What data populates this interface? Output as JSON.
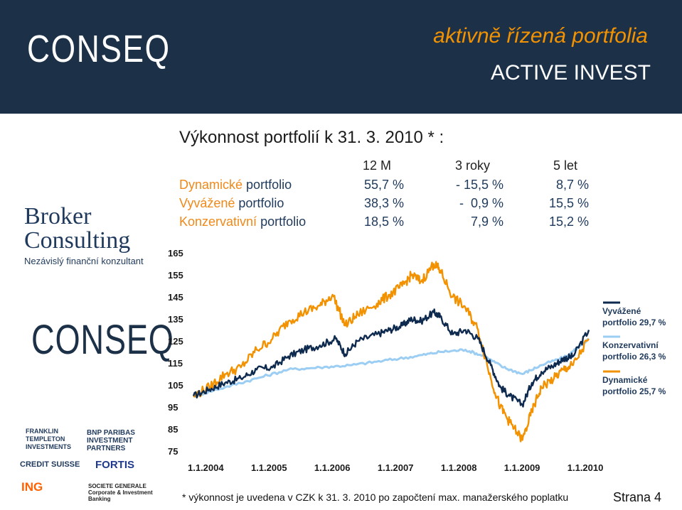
{
  "header": {
    "logo": "CONSEQ",
    "tagline_cz": "aktivně řízená portfolia",
    "tagline_en": "ACTIVE INVEST"
  },
  "title": "Výkonnost portfolií k  31. 3. 2010 * :",
  "table": {
    "columns": [
      "12 M",
      "3 roky",
      "5 let"
    ],
    "rows": [
      {
        "label_a": "Dynamické",
        "label_b": "portfolio",
        "values": [
          "55,7 %",
          "- 15,5 %",
          "8,7 %"
        ]
      },
      {
        "label_a": "Vyvážené",
        "label_b": "portfolio",
        "values": [
          "38,3 %",
          "-  0,9 %",
          "15,5 %"
        ]
      },
      {
        "label_a": "Konzervativní",
        "label_b": "portfolio",
        "values": [
          "18,5 %",
          "7,9 %",
          "15,2 %"
        ]
      }
    ]
  },
  "sidebar": {
    "broker_logo": "Broker Consulting",
    "broker_tagline": "Nezávislý finanční konzultant",
    "conseq_logo": "CONSEQ",
    "partners": [
      "FRANKLIN TEMPLETON INVESTMENTS",
      "BNP PARIBAS INVESTMENT PARTNERS",
      "CREDIT SUISSE",
      "FORTIS",
      "ING",
      "SOCIETE GENERALE Corporate & Investment Banking"
    ]
  },
  "chart_data": {
    "type": "line",
    "title": "",
    "xlabel": "",
    "ylabel": "",
    "x_ticks": [
      "1.1.2004",
      "1.1.2005",
      "1.1.2006",
      "1.1.2007",
      "1.1.2008",
      "1.1.2009",
      "1.1.2010"
    ],
    "y_ticks": [
      75,
      85,
      95,
      105,
      115,
      125,
      135,
      145,
      155,
      165
    ],
    "ylim": [
      75,
      165
    ],
    "xlim": [
      2004.0,
      2010.25
    ],
    "grid": false,
    "legend_position": "right",
    "series": [
      {
        "name_a": "Vyvážené",
        "name_b": "portfolio",
        "value": "29,7 %",
        "color": "#0e2a4f",
        "points": [
          [
            2004.0,
            100
          ],
          [
            2004.25,
            103
          ],
          [
            2004.5,
            106
          ],
          [
            2004.75,
            108
          ],
          [
            2005.0,
            112
          ],
          [
            2005.25,
            113
          ],
          [
            2005.5,
            118
          ],
          [
            2005.75,
            121
          ],
          [
            2006.0,
            123
          ],
          [
            2006.25,
            126
          ],
          [
            2006.4,
            119
          ],
          [
            2006.6,
            125
          ],
          [
            2006.9,
            128
          ],
          [
            2007.1,
            130
          ],
          [
            2007.3,
            132
          ],
          [
            2007.45,
            135
          ],
          [
            2007.6,
            134
          ],
          [
            2007.8,
            138
          ],
          [
            2007.9,
            136
          ],
          [
            2008.1,
            128
          ],
          [
            2008.3,
            130
          ],
          [
            2008.5,
            126
          ],
          [
            2008.7,
            114
          ],
          [
            2008.85,
            104
          ],
          [
            2009.0,
            100
          ],
          [
            2009.2,
            96
          ],
          [
            2009.35,
            106
          ],
          [
            2009.5,
            111
          ],
          [
            2009.7,
            114
          ],
          [
            2009.85,
            117
          ],
          [
            2010.0,
            118
          ],
          [
            2010.25,
            130
          ]
        ]
      },
      {
        "name_a": "Konzervativní",
        "name_b": "portfolio",
        "value": "26,3 %",
        "color": "#9ccdf3",
        "points": [
          [
            2004.0,
            100
          ],
          [
            2004.5,
            104
          ],
          [
            2005.0,
            108
          ],
          [
            2005.5,
            112
          ],
          [
            2006.0,
            113
          ],
          [
            2006.5,
            114
          ],
          [
            2007.0,
            116
          ],
          [
            2007.5,
            118
          ],
          [
            2007.9,
            120
          ],
          [
            2008.3,
            121
          ],
          [
            2008.6,
            118
          ],
          [
            2008.9,
            113
          ],
          [
            2009.2,
            110
          ],
          [
            2009.5,
            114
          ],
          [
            2009.9,
            118
          ],
          [
            2010.25,
            126
          ]
        ]
      },
      {
        "name_a": "Dynamické",
        "name_b": "portfolio",
        "value": "25,7 %",
        "color": "#f39200",
        "points": [
          [
            2004.0,
            100
          ],
          [
            2004.25,
            104
          ],
          [
            2004.5,
            110
          ],
          [
            2004.75,
            113
          ],
          [
            2005.0,
            121
          ],
          [
            2005.25,
            126
          ],
          [
            2005.5,
            134
          ],
          [
            2005.75,
            138
          ],
          [
            2006.0,
            141
          ],
          [
            2006.2,
            146
          ],
          [
            2006.4,
            132
          ],
          [
            2006.6,
            137
          ],
          [
            2006.9,
            142
          ],
          [
            2007.1,
            146
          ],
          [
            2007.3,
            150
          ],
          [
            2007.45,
            155
          ],
          [
            2007.6,
            152
          ],
          [
            2007.8,
            160
          ],
          [
            2007.9,
            157
          ],
          [
            2008.1,
            145
          ],
          [
            2008.3,
            140
          ],
          [
            2008.5,
            130
          ],
          [
            2008.7,
            108
          ],
          [
            2008.85,
            95
          ],
          [
            2009.0,
            88
          ],
          [
            2009.2,
            80
          ],
          [
            2009.35,
            93
          ],
          [
            2009.5,
            104
          ],
          [
            2009.7,
            108
          ],
          [
            2009.85,
            112
          ],
          [
            2010.0,
            114
          ],
          [
            2010.25,
            126
          ]
        ]
      }
    ]
  },
  "footnote": "* výkonnost je uvedena v CZK k 31. 3. 2010 po započtení max. manažerského poplatku",
  "page": "Strana 4"
}
